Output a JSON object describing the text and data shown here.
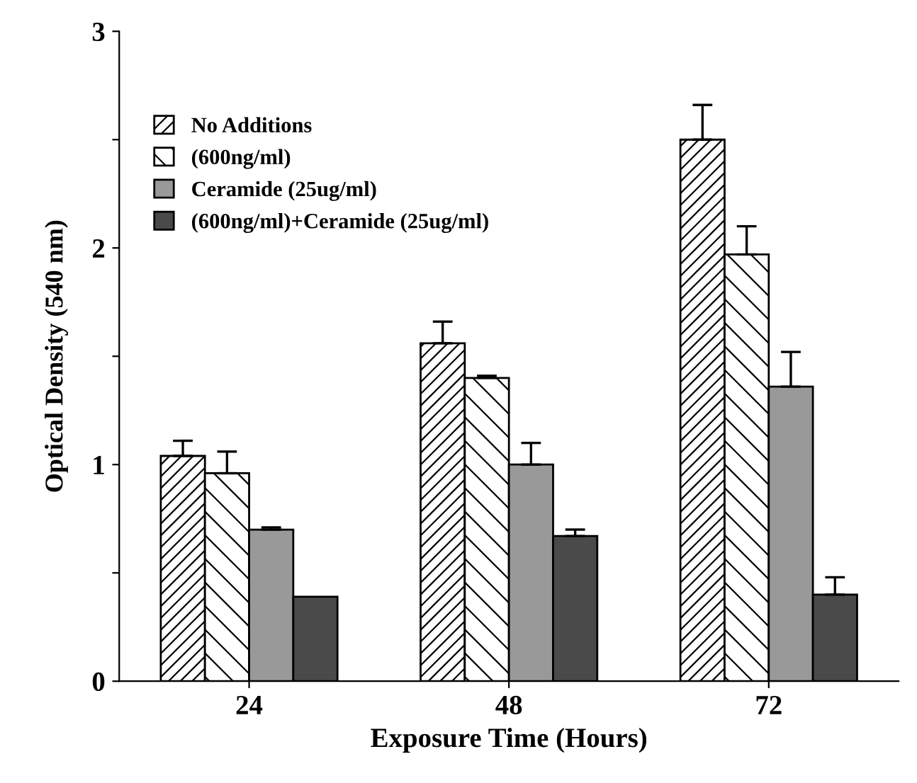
{
  "chart_data": {
    "type": "bar",
    "xlabel": "Exposure Time (Hours)",
    "ylabel": "Optical Density (540 nm)",
    "categories": [
      "24",
      "48",
      "72"
    ],
    "series": [
      {
        "name": "No Additions",
        "color": "#000000",
        "values": [
          1.04,
          1.56,
          2.5
        ],
        "errors": [
          [
            1.04,
            1.11
          ],
          [
            1.56,
            1.66
          ],
          [
            2.5,
            2.66
          ]
        ]
      },
      {
        "name": "(600ng/ml)",
        "color": "#000000",
        "values": [
          0.96,
          1.4,
          1.97
        ],
        "errors": [
          [
            0.96,
            1.06
          ],
          [
            1.4,
            1.41
          ],
          [
            1.97,
            2.1
          ]
        ]
      },
      {
        "name": "Ceramide (25ug/ml)",
        "color": "#999999",
        "values": [
          0.7,
          1.0,
          1.36
        ],
        "errors": [
          [
            0.7,
            0.71
          ],
          [
            1.0,
            1.1
          ],
          [
            1.36,
            1.52
          ]
        ]
      },
      {
        "name": "(600ng/ml)+Ceramide (25ug/ml)",
        "color": "#4a4a4a",
        "values": [
          0.39,
          0.67,
          0.4
        ],
        "errors": [
          null,
          [
            0.67,
            0.7
          ],
          [
            0.4,
            0.48
          ]
        ]
      }
    ],
    "ylim": [
      0,
      3
    ],
    "yticks": [
      0,
      {
        "value": 0.5,
        "label": null
      },
      1,
      {
        "value": 1.5,
        "label": null
      },
      2,
      {
        "value": 2.5,
        "label": null
      },
      3
    ],
    "legend": "top left",
    "grid": false
  }
}
